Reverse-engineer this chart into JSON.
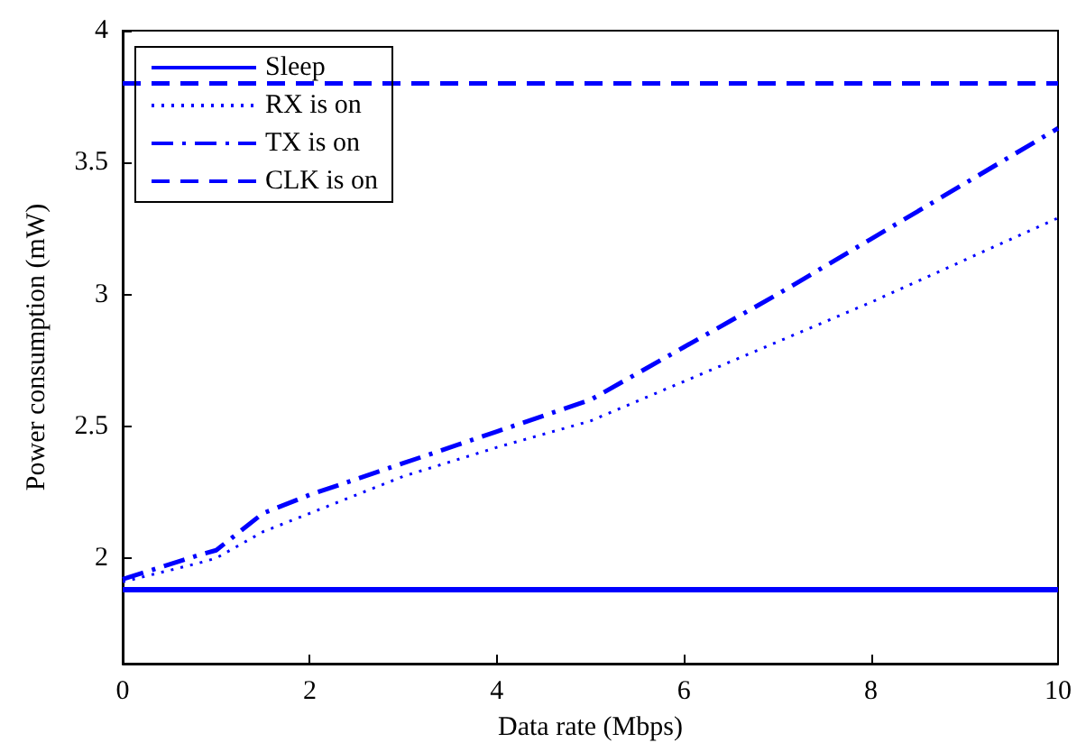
{
  "chart_data": {
    "type": "line",
    "xlabel": "Data rate (Mbps)",
    "ylabel": "Power consumption (mW)",
    "xlim": [
      0,
      10
    ],
    "xticks": [
      0,
      2,
      4,
      6,
      8,
      10
    ],
    "ylim": [
      1.6,
      4
    ],
    "yticks": [
      2,
      2.5,
      3,
      3.5,
      4
    ],
    "grid": false,
    "legend": "top left",
    "marker": "none",
    "series": [
      {
        "name": "Sleep",
        "color": "#0000ff",
        "line_style": "solid",
        "x": [
          0,
          10
        ],
        "values": [
          1.88,
          1.88
        ]
      },
      {
        "name": "RX is on",
        "color": "#0000ff",
        "line_style": "dotted",
        "x": [
          0,
          0.8,
          1,
          1.5,
          2,
          3,
          4,
          5,
          6,
          7,
          8,
          9,
          10
        ],
        "values": [
          1.91,
          1.98,
          2.0,
          2.1,
          2.17,
          2.31,
          2.42,
          2.52,
          2.67,
          2.82,
          2.97,
          3.13,
          3.29
        ]
      },
      {
        "name": "TX is on",
        "color": "#0000ff",
        "line_style": "dashdot",
        "x": [
          0,
          0.8,
          1,
          1.5,
          2,
          3,
          4,
          5,
          6,
          7,
          8,
          9,
          10
        ],
        "values": [
          1.92,
          2.01,
          2.03,
          2.17,
          2.24,
          2.36,
          2.48,
          2.6,
          2.8,
          3.0,
          3.21,
          3.42,
          3.63
        ]
      },
      {
        "name": "CLK is on",
        "color": "#0000ff",
        "line_style": "dashed",
        "x": [
          0,
          10
        ],
        "values": [
          3.8,
          3.8
        ]
      }
    ]
  }
}
